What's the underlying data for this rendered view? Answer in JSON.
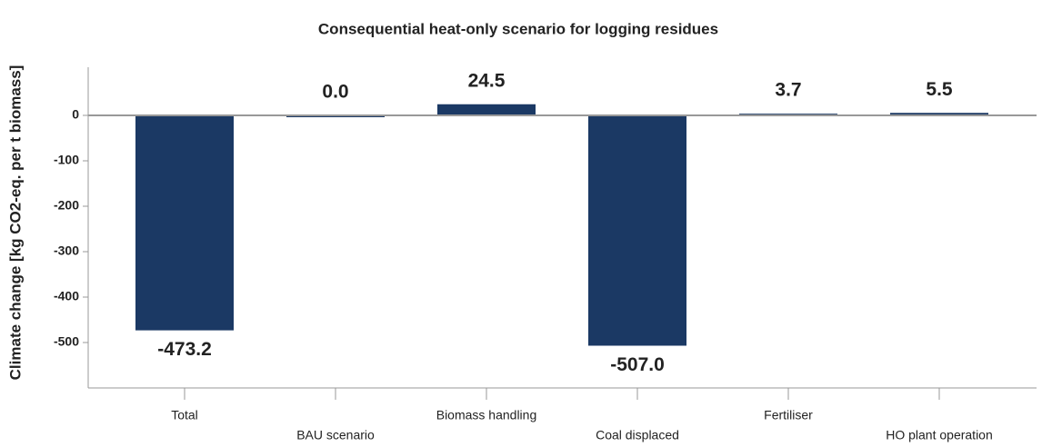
{
  "chart_data": {
    "type": "bar",
    "title": "Consequential heat-only scenario for logging residues",
    "ylabel": "Climate change [kg CO2-eq. per t biomass]",
    "categories": [
      "Total",
      "BAU scenario",
      "Biomass handling",
      "Coal displaced",
      "Fertiliser",
      "HO plant operation"
    ],
    "values": [
      -473.2,
      0,
      24.5,
      -507,
      3.7,
      5.5
    ],
    "value_labels": [
      "-473.2",
      "0.0",
      "24.5",
      "-507.0",
      "3.7",
      "5.5"
    ],
    "color": "#1b3964",
    "ylim": [
      -600,
      100
    ],
    "yticks": [
      -500,
      -400,
      -300,
      -200,
      -100,
      0
    ]
  }
}
